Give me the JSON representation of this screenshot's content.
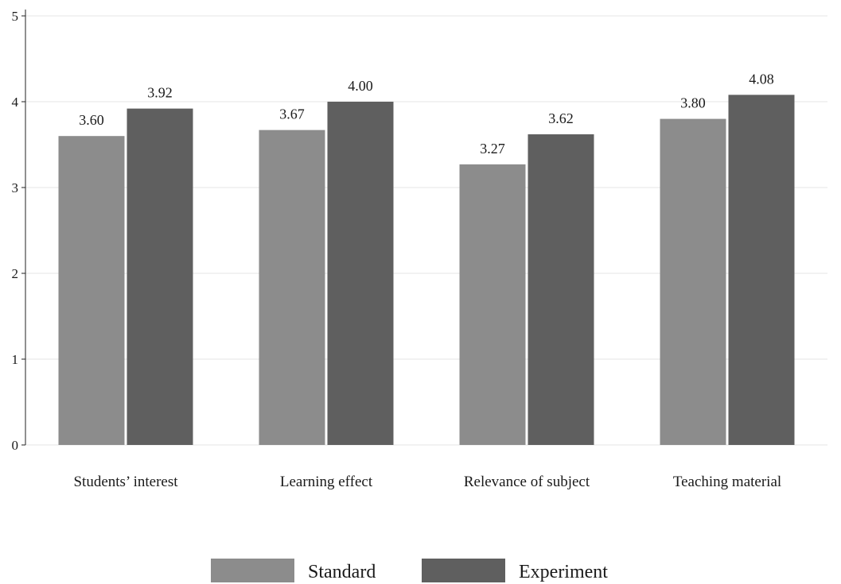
{
  "chart_data": {
    "type": "bar",
    "title": "",
    "xlabel": "",
    "ylabel": "",
    "categories": [
      "Students’ interest",
      "Learning effect",
      "Relevance of subject",
      "Teaching material"
    ],
    "series": [
      {
        "name": "Standard",
        "values": [
          3.6,
          3.67,
          3.27,
          3.8
        ],
        "labels": [
          "3.60",
          "3.67",
          "3.27",
          "3.80"
        ],
        "color": "#8c8c8c"
      },
      {
        "name": "Experiment",
        "values": [
          3.92,
          4.0,
          3.62,
          4.08
        ],
        "labels": [
          "3.92",
          "4.00",
          "3.62",
          "4.08"
        ],
        "color": "#5f5f5f"
      }
    ],
    "ylim": [
      0,
      5
    ],
    "yticks": [
      0,
      1,
      2,
      3,
      4,
      5
    ],
    "ytick_labels": [
      "0",
      "1",
      "2",
      "3",
      "4",
      "5"
    ],
    "grid": true,
    "legend_position": "bottom-center"
  }
}
